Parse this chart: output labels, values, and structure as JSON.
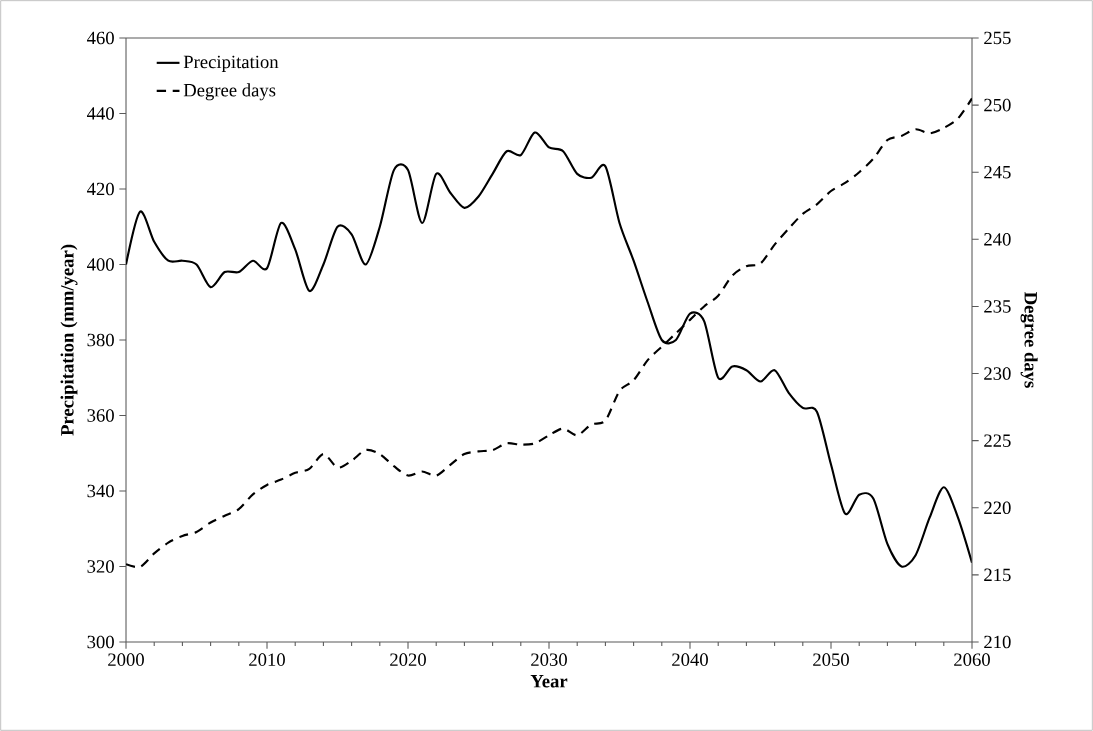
{
  "chart_data": {
    "type": "line",
    "xlabel": "Year",
    "ylabel": "Precipitation (mm/year)",
    "y2label": "Degree days",
    "x": [
      2000,
      2001,
      2002,
      2003,
      2004,
      2005,
      2006,
      2007,
      2008,
      2009,
      2010,
      2011,
      2012,
      2013,
      2014,
      2015,
      2016,
      2017,
      2018,
      2019,
      2020,
      2021,
      2022,
      2023,
      2024,
      2025,
      2026,
      2027,
      2028,
      2029,
      2030,
      2031,
      2032,
      2033,
      2034,
      2035,
      2036,
      2037,
      2038,
      2039,
      2040,
      2041,
      2042,
      2043,
      2044,
      2045,
      2046,
      2047,
      2048,
      2049,
      2050,
      2051,
      2052,
      2053,
      2054,
      2055,
      2056,
      2057,
      2058,
      2059,
      2060
    ],
    "series": [
      {
        "name": "Precipitation",
        "color": "#000000",
        "line_style": "solid",
        "values": [
          400,
          414,
          406,
          401,
          401,
          400,
          394,
          398,
          398,
          401,
          399,
          411,
          404,
          393,
          400,
          410,
          408,
          400,
          410,
          425,
          425,
          411,
          424,
          419,
          415,
          418,
          424,
          430,
          429,
          435,
          431,
          430,
          424,
          423,
          426,
          411,
          401,
          390,
          380,
          380,
          387,
          385,
          370,
          373,
          372,
          369,
          372,
          366,
          362,
          361,
          347,
          334,
          339,
          338,
          326,
          320,
          323,
          333,
          341,
          333,
          321
        ]
      },
      {
        "name": "Degree days",
        "color": "#000000",
        "line_style": "dashed",
        "axis": "y2",
        "values": [
          215.8,
          215.6,
          216.6,
          217.4,
          217.9,
          218.2,
          218.9,
          219.4,
          219.9,
          221.0,
          221.7,
          222.1,
          222.6,
          222.9,
          224.0,
          223.0,
          223.5,
          224.3,
          224.0,
          223.1,
          222.4,
          222.7,
          222.4,
          223.2,
          224.0,
          224.2,
          224.3,
          224.8,
          224.7,
          224.8,
          225.4,
          225.9,
          225.4,
          226.2,
          226.5,
          228.7,
          229.5,
          231.0,
          232.0,
          233.0,
          234.0,
          235.0,
          235.8,
          237.3,
          238.0,
          238.2,
          239.6,
          240.8,
          241.9,
          242.6,
          243.6,
          244.2,
          245.0,
          246.0,
          247.4,
          247.7,
          248.2,
          247.9,
          248.3,
          249.0,
          250.5
        ]
      }
    ],
    "xlim": [
      2000,
      2060
    ],
    "xticks": [
      2000,
      2010,
      2020,
      2030,
      2040,
      2050,
      2060
    ],
    "ylim": [
      300,
      460
    ],
    "yticks": [
      300,
      320,
      340,
      360,
      380,
      400,
      420,
      440,
      460
    ],
    "y2lim": [
      210,
      255
    ],
    "y2ticks": [
      210,
      215,
      220,
      225,
      230,
      235,
      240,
      245,
      250,
      255
    ],
    "grid": false,
    "legend": "top left",
    "marker": "none"
  }
}
